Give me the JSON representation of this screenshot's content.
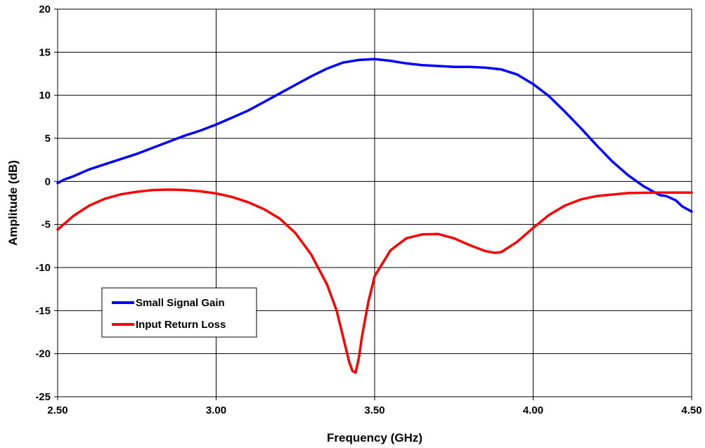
{
  "chart_data": {
    "type": "line",
    "title": "",
    "xlabel": "Frequency (GHz)",
    "ylabel": "Amplitude (dB)",
    "xlim": [
      2.5,
      4.5
    ],
    "ylim": [
      -25,
      20
    ],
    "x_ticks": [
      "2.50",
      "3.00",
      "3.50",
      "4.00",
      "4.50"
    ],
    "x_tick_values": [
      2.5,
      3.0,
      3.5,
      4.0,
      4.5
    ],
    "y_ticks": [
      "20",
      "15",
      "10",
      "5",
      "0",
      "-5",
      "-10",
      "-15",
      "-20",
      "-25"
    ],
    "y_tick_values": [
      20,
      15,
      10,
      5,
      0,
      -5,
      -10,
      -15,
      -20,
      -25
    ],
    "grid": true,
    "legend_position": "lower-left",
    "series": [
      {
        "name": "Small Signal Gain",
        "color": "#0000ff",
        "x": [
          2.5,
          2.52,
          2.55,
          2.6,
          2.65,
          2.7,
          2.75,
          2.8,
          2.85,
          2.9,
          2.95,
          3.0,
          3.05,
          3.1,
          3.15,
          3.2,
          3.25,
          3.3,
          3.35,
          3.4,
          3.45,
          3.5,
          3.55,
          3.6,
          3.65,
          3.7,
          3.75,
          3.8,
          3.85,
          3.9,
          3.95,
          4.0,
          4.05,
          4.1,
          4.15,
          4.2,
          4.25,
          4.3,
          4.35,
          4.4,
          4.42,
          4.45,
          4.47,
          4.5
        ],
        "y": [
          -0.2,
          0.2,
          0.6,
          1.4,
          2.0,
          2.6,
          3.2,
          3.9,
          4.6,
          5.3,
          5.9,
          6.6,
          7.4,
          8.2,
          9.2,
          10.2,
          11.2,
          12.2,
          13.1,
          13.8,
          14.1,
          14.2,
          14.0,
          13.7,
          13.5,
          13.4,
          13.3,
          13.3,
          13.2,
          13.0,
          12.4,
          11.3,
          9.9,
          8.1,
          6.2,
          4.2,
          2.3,
          0.7,
          -0.6,
          -1.6,
          -1.7,
          -2.2,
          -2.9,
          -3.5
        ]
      },
      {
        "name": "Input Return Loss",
        "color": "#ff0000",
        "x": [
          2.5,
          2.55,
          2.6,
          2.65,
          2.7,
          2.75,
          2.8,
          2.85,
          2.9,
          2.95,
          3.0,
          3.05,
          3.1,
          3.15,
          3.2,
          3.25,
          3.3,
          3.35,
          3.38,
          3.4,
          3.42,
          3.43,
          3.44,
          3.45,
          3.46,
          3.48,
          3.5,
          3.55,
          3.6,
          3.65,
          3.7,
          3.75,
          3.8,
          3.85,
          3.88,
          3.9,
          3.95,
          4.0,
          4.05,
          4.1,
          4.15,
          4.2,
          4.3,
          4.4,
          4.5
        ],
        "y": [
          -5.6,
          -4.0,
          -2.8,
          -2.0,
          -1.5,
          -1.2,
          -1.0,
          -0.95,
          -1.0,
          -1.15,
          -1.4,
          -1.8,
          -2.4,
          -3.2,
          -4.3,
          -6.0,
          -8.5,
          -12.0,
          -15.0,
          -18.0,
          -21.0,
          -22.0,
          -22.2,
          -20.5,
          -18.0,
          -14.0,
          -11.0,
          -8.0,
          -6.6,
          -6.15,
          -6.1,
          -6.6,
          -7.4,
          -8.1,
          -8.3,
          -8.2,
          -7.0,
          -5.4,
          -3.9,
          -2.8,
          -2.1,
          -1.7,
          -1.35,
          -1.3,
          -1.3
        ]
      }
    ]
  }
}
